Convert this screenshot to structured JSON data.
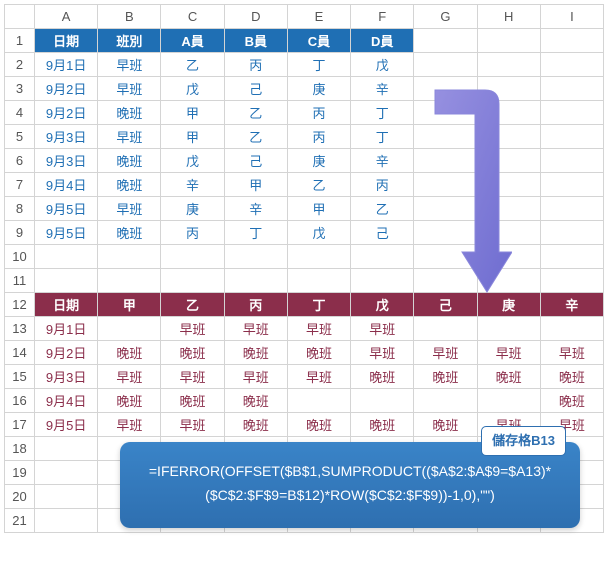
{
  "columns": [
    "A",
    "B",
    "C",
    "D",
    "E",
    "F",
    "G",
    "H",
    "I"
  ],
  "rows_count": 21,
  "table1": {
    "header_bg": "#1f6fb4",
    "text_color": "#1f6fb4",
    "headers": [
      "日期",
      "班別",
      "A員",
      "B員",
      "C員",
      "D員"
    ],
    "rows": [
      [
        "9月1日",
        "早班",
        "乙",
        "丙",
        "丁",
        "戊"
      ],
      [
        "9月2日",
        "早班",
        "戊",
        "己",
        "庚",
        "辛"
      ],
      [
        "9月2日",
        "晚班",
        "甲",
        "乙",
        "丙",
        "丁"
      ],
      [
        "9月3日",
        "早班",
        "甲",
        "乙",
        "丙",
        "丁"
      ],
      [
        "9月3日",
        "晚班",
        "戊",
        "己",
        "庚",
        "辛"
      ],
      [
        "9月4日",
        "晚班",
        "辛",
        "甲",
        "乙",
        "丙"
      ],
      [
        "9月5日",
        "早班",
        "庚",
        "辛",
        "甲",
        "乙"
      ],
      [
        "9月5日",
        "晚班",
        "丙",
        "丁",
        "戊",
        "己"
      ]
    ]
  },
  "table2": {
    "header_bg": "#8b2e4b",
    "text_color": "#8b2e4b",
    "headers": [
      "日期",
      "甲",
      "乙",
      "丙",
      "丁",
      "戊",
      "己",
      "庚",
      "辛"
    ],
    "rows": [
      [
        "9月1日",
        "",
        "早班",
        "早班",
        "早班",
        "早班",
        "",
        "",
        ""
      ],
      [
        "9月2日",
        "晚班",
        "晚班",
        "晚班",
        "晚班",
        "早班",
        "早班",
        "早班",
        "早班"
      ],
      [
        "9月3日",
        "早班",
        "早班",
        "早班",
        "早班",
        "晚班",
        "晚班",
        "晚班",
        "晚班"
      ],
      [
        "9月4日",
        "晚班",
        "晚班",
        "晚班",
        "",
        "",
        "",
        "",
        "晚班"
      ],
      [
        "9月5日",
        "早班",
        "早班",
        "晚班",
        "晚班",
        "晚班",
        "晚班",
        "早班",
        "早班"
      ]
    ]
  },
  "formula": {
    "badge": "儲存格B13",
    "line1": "=IFERROR(OFFSET($B$1,SUMPRODUCT(($A$2:$A$9=$A13)*",
    "line2": "($C$2:$F$9=B$12)*ROW($C$2:$F$9))-1,0),\"\")"
  },
  "arrow_color": "#7b79d8",
  "arrow_color2": "#9690e0"
}
